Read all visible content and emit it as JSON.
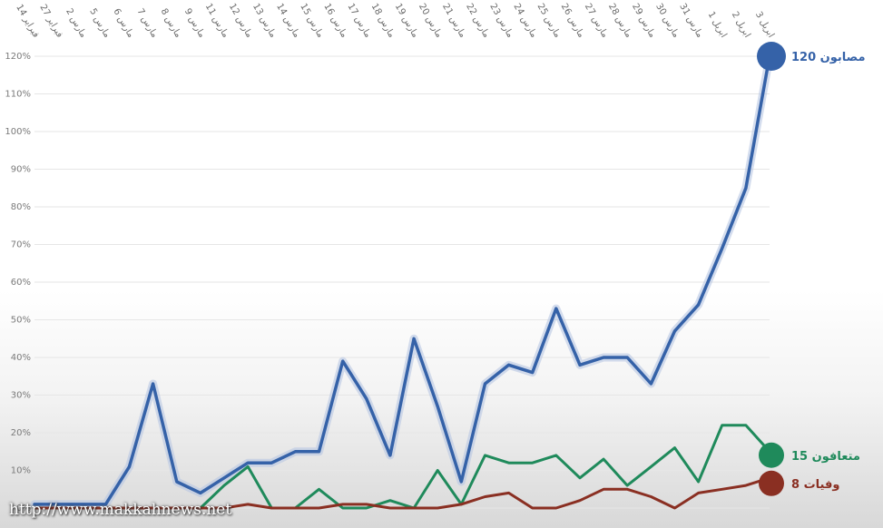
{
  "watermark": "http://www.makkahnews.net",
  "chart_data": {
    "type": "line",
    "title": "",
    "xlabel": "",
    "ylabel": "",
    "ylim": [
      0,
      120
    ],
    "y_ticks": [
      "0%",
      "10%",
      "20%",
      "30%",
      "40%",
      "50%",
      "60%",
      "70%",
      "80%",
      "90%",
      "100%",
      "110%",
      "120%"
    ],
    "y_tick_values": [
      0,
      10,
      20,
      30,
      40,
      50,
      60,
      70,
      80,
      90,
      100,
      110,
      120
    ],
    "grid": true,
    "categories": [
      "فبراير 14",
      "فبراير 27",
      "مارس 2",
      "مارس 5",
      "مارس 6",
      "مارس 7",
      "مارس 8",
      "مارس 9",
      "مارس 11",
      "مارس 12",
      "مارس 13",
      "مارس 14",
      "مارس 15",
      "مارس 16",
      "مارس 17",
      "مارس 18",
      "مارس 19",
      "مارس 20",
      "مارس 21",
      "مارس 22",
      "مارس 23",
      "مارس 24",
      "مارس 25",
      "مارس 26",
      "مارس 27",
      "مارس 28",
      "مارس 29",
      "مارس 30",
      "مارس 31",
      "ابريل 1",
      "ابريل 2",
      "ابريل 3"
    ],
    "series": [
      {
        "name": "مصابون",
        "end_label": "مصابون 120",
        "color": "#3562a8",
        "values": [
          1,
          1,
          1,
          1,
          11,
          33,
          7,
          4,
          8,
          12,
          12,
          15,
          15,
          39,
          29,
          14,
          45,
          27,
          7,
          33,
          38,
          36,
          53,
          38,
          40,
          40,
          33,
          47,
          54,
          69,
          85,
          120
        ]
      },
      {
        "name": "متعافون",
        "end_label": "متعافون 15",
        "color": "#1f8a5b",
        "values": [
          0,
          0,
          0,
          0,
          0,
          0,
          0,
          0,
          6,
          11,
          0,
          0,
          5,
          0,
          0,
          2,
          0,
          10,
          1,
          14,
          12,
          12,
          14,
          8,
          13,
          6,
          11,
          16,
          7,
          22,
          22,
          15
        ]
      },
      {
        "name": "وفيات",
        "end_label": "وفيات 8",
        "color": "#8a2f22",
        "values": [
          0,
          0,
          0,
          0,
          0,
          0,
          0,
          0,
          0,
          1,
          0,
          0,
          0,
          1,
          1,
          0,
          0,
          0,
          1,
          3,
          4,
          0,
          0,
          2,
          5,
          5,
          3,
          0,
          4,
          5,
          6,
          8
        ]
      }
    ]
  }
}
